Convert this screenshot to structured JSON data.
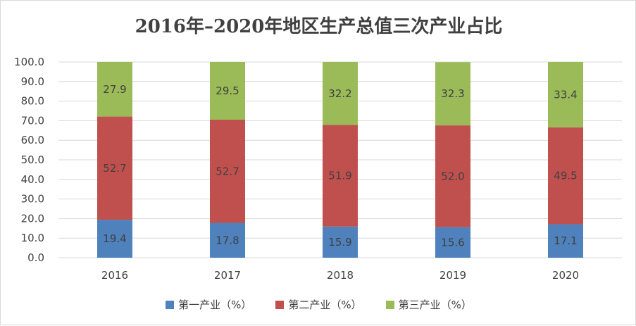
{
  "chart_data": {
    "type": "bar",
    "stacked": true,
    "title": "2016年–2020年地区生产总值三次产业占比",
    "categories": [
      "2016",
      "2017",
      "2018",
      "2019",
      "2020"
    ],
    "ylim": [
      0,
      100
    ],
    "yticks": [
      "0.0",
      "10.0",
      "20.0",
      "30.0",
      "40.0",
      "50.0",
      "60.0",
      "70.0",
      "80.0",
      "90.0",
      "100.0"
    ],
    "grid": true,
    "legend_position": "bottom",
    "series": [
      {
        "name": "第一产业（%）",
        "color": "#4f81bd",
        "values": [
          19.4,
          17.8,
          15.9,
          15.6,
          17.1
        ],
        "labels": [
          "19.4",
          "17.8",
          "15.9",
          "15.6",
          "17.1"
        ]
      },
      {
        "name": "第二产业（%）",
        "color": "#c0504d",
        "values": [
          52.7,
          52.7,
          51.9,
          52.0,
          49.5
        ],
        "labels": [
          "52.7",
          "52.7",
          "51.9",
          "52.0",
          "49.5"
        ]
      },
      {
        "name": "第三产业（%）",
        "color": "#9bbb59",
        "values": [
          27.9,
          29.5,
          32.2,
          32.3,
          33.4
        ],
        "labels": [
          "27.9",
          "29.5",
          "32.2",
          "32.3",
          "33.4"
        ]
      }
    ]
  }
}
